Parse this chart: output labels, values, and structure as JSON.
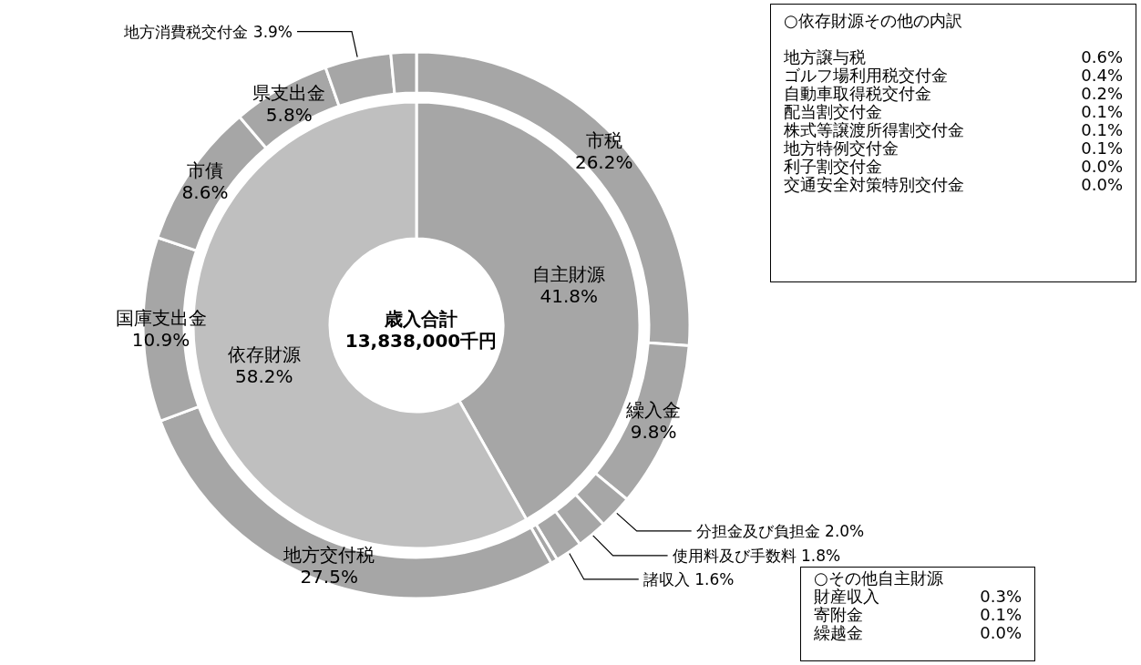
{
  "chart_data": [
    {
      "type": "donut",
      "title": "歳入合計\n13,838,000千円",
      "categories": [
        "自主財源",
        "依存財源"
      ],
      "values": [
        41.8,
        58.2
      ],
      "value_labels": [
        "41.8%",
        "58.2%"
      ],
      "colors": [
        "#a6a6a6",
        "#bfbfbf"
      ]
    },
    {
      "type": "donut",
      "categories": [
        "市税",
        "繰入金",
        "分担金及び負担金",
        "使用料及び手数料",
        "諸収入",
        null,
        "地方交付税",
        "国庫支出金",
        "市債",
        "県支出金",
        "地方消費税交付金",
        null
      ],
      "values": [
        26.2,
        9.8,
        2.0,
        1.8,
        1.6,
        0.4,
        27.5,
        10.9,
        8.6,
        5.8,
        3.9,
        1.5
      ],
      "value_labels": [
        "26.2%",
        "9.8%",
        "2.0%",
        "1.8%",
        "1.6%",
        null,
        "27.5%",
        "10.9%",
        "8.6%",
        "5.8%",
        "3.9%",
        null
      ],
      "colors": [
        "#a6a6a6",
        "#a6a6a6",
        "#a6a6a6",
        "#a6a6a6",
        "#a6a6a6",
        "#a6a6a6",
        "#a6a6a6",
        "#a6a6a6",
        "#a6a6a6",
        "#a6a6a6",
        "#a6a6a6",
        "#a6a6a6"
      ],
      "annotations": [
        "○依存財源その他の内訳",
        "地方譲与税\t0.6%\nゴルフ場利用税交付金\t0.4%\n自動車取得税交付金\t0.2%\n配当割交付金\t0.1%\n株式等譲渡所得割交付金\t0.1%\n地方特例交付金\t0.1%\n利子割交付金\t0.0%\n交通安全対策特別交付金\t0.0%",
        "○その他自主財源",
        "財産収入\t0.3%\n寄附金\t0.1%\n繰越金\t0.0%"
      ]
    }
  ]
}
